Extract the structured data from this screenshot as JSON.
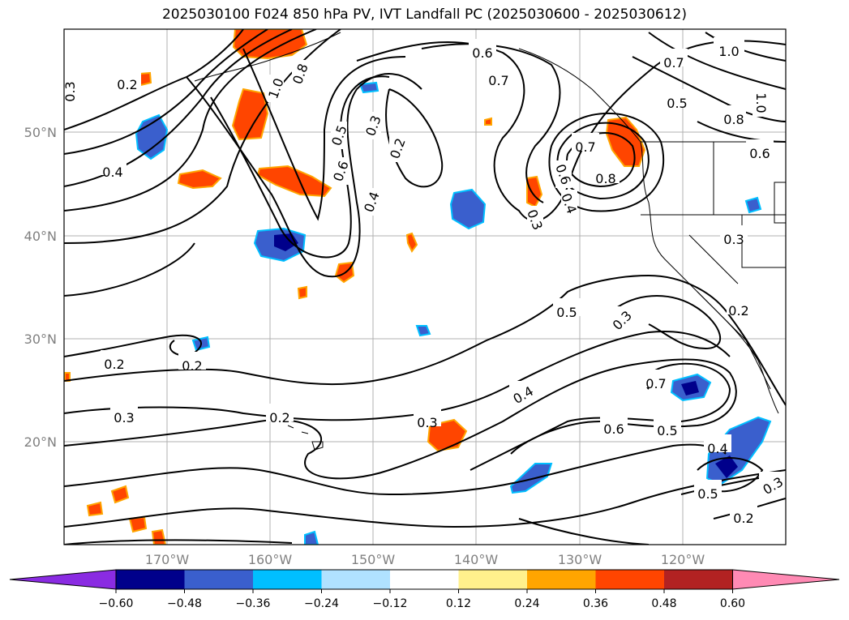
{
  "title": "2025030100 F024 850 hPa PV, IVT Landfall PC (2025030600 - 2025030612)",
  "axes": {
    "lat_labels": [
      "50°N",
      "40°N",
      "30°N",
      "20°N"
    ],
    "lon_labels": [
      "170°W",
      "160°W",
      "150°W",
      "140°W",
      "130°W",
      "120°W"
    ]
  },
  "contour_labels": [
    "0.2",
    "0.3",
    "0.4",
    "1.0",
    "0.8",
    "0.3",
    "0.2",
    "0.5",
    "0.6",
    "0.4",
    "0.6",
    "0.7",
    "0.3",
    "0.7",
    "0.6",
    "0.8",
    "0.4",
    "0.7",
    "1.0",
    "0.5",
    "1.0",
    "0.8",
    "0.6",
    "0.3",
    "0.2",
    "0.5",
    "0.3",
    "0.2",
    "0.2",
    "0.3",
    "0.2",
    "0.3",
    "0.4",
    "0.7",
    "0.6",
    "0.5",
    "0.4",
    "0.5",
    "0.3",
    "0.2"
  ],
  "colorbar": {
    "ticks": [
      "−0.60",
      "−0.48",
      "−0.36",
      "−0.24",
      "−0.12",
      "0.12",
      "0.24",
      "0.36",
      "0.48",
      "0.60"
    ],
    "colors": [
      "#8a2be2",
      "#00008b",
      "#3a5fcd",
      "#00bfff",
      "#b0e2ff",
      "#ffffff",
      "#fff08c",
      "#ffa500",
      "#ff4500",
      "#b22222",
      "#ff8ab4"
    ]
  }
}
